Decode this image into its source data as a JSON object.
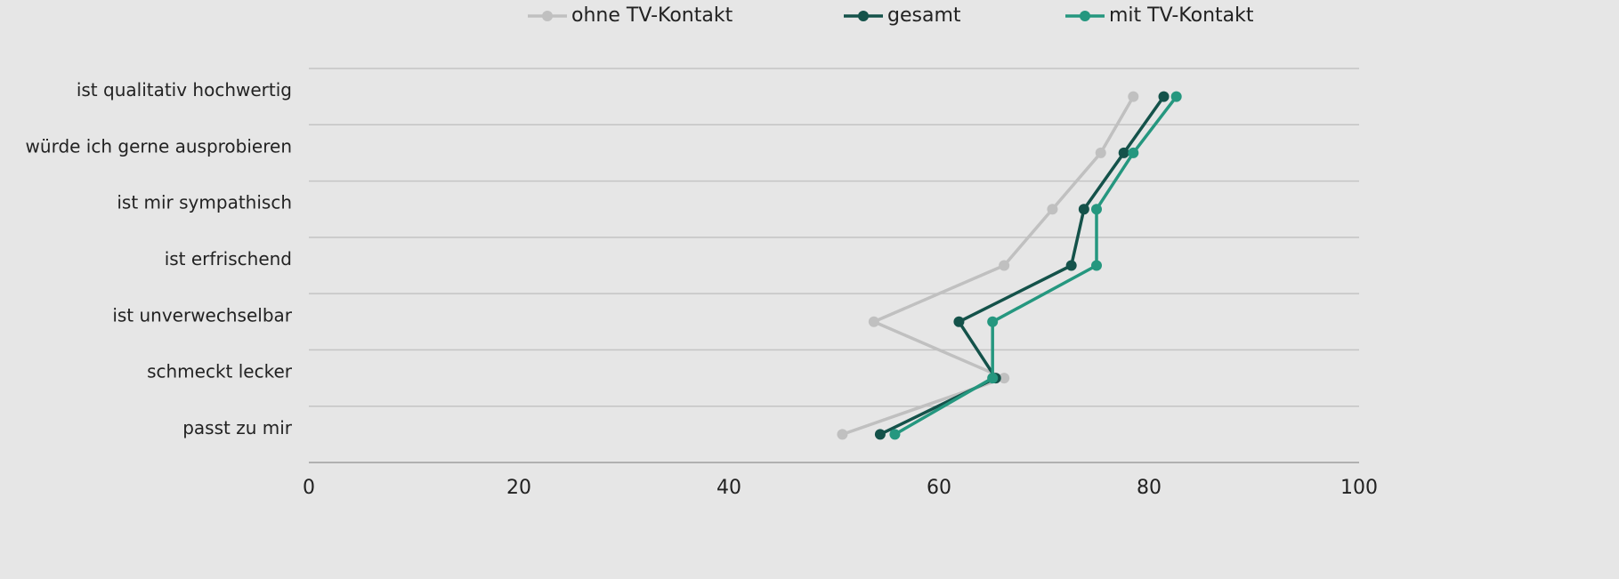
{
  "chart_data": {
    "type": "line",
    "orientation": "horizontal",
    "categories": [
      "ist qualitativ hochwertig",
      "würde ich gerne ausprobieren",
      "ist mir sympathisch",
      "ist erfrischend",
      "ist unverwechselbar",
      "schmeckt lecker",
      "passt zu mir"
    ],
    "series": [
      {
        "name": "ohne TV-Kontakt",
        "color": "#c0c0c0",
        "values": [
          78.5,
          75.4,
          70.8,
          66.2,
          53.8,
          66.2,
          50.8
        ]
      },
      {
        "name": "gesamt",
        "color": "#14524a",
        "values": [
          81.4,
          77.6,
          73.8,
          72.6,
          61.9,
          65.4,
          54.4
        ]
      },
      {
        "name": "mit TV-Kontakt",
        "color": "#25977f",
        "values": [
          82.6,
          78.5,
          75.0,
          75.0,
          65.1,
          65.1,
          55.8
        ]
      }
    ],
    "xlim": [
      0,
      100
    ],
    "xticks": [
      0,
      20,
      40,
      60,
      80,
      100
    ],
    "legend": "top"
  }
}
